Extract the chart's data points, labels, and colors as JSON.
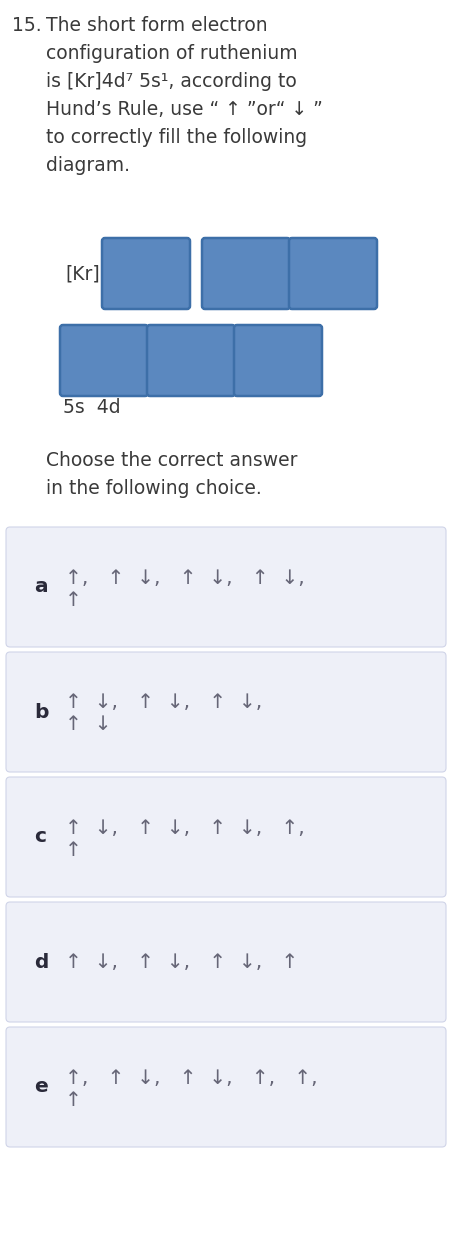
{
  "text_color": "#3a3a3a",
  "box_color": "#5b88bf",
  "box_border_color": "#3d6fa8",
  "choice_bg_color": "#eef0f8",
  "choice_border_color": "#d0d4e8",
  "bg_color": "#ffffff",
  "fig_width": 4.56,
  "fig_height": 12.51,
  "question_lines": [
    "The short form electron",
    "configuration of ruthenium",
    "is [Kr]4d⁷ 5s¹, according to",
    "Hund’s Rule, use “ ↑ ”or“ ↓ ”",
    "to correctly fill the following",
    "diagram."
  ],
  "choices": [
    {
      "label": "a",
      "top": "↑,   ↑  ↓,   ↑  ↓,   ↑  ↓,",
      "bot": "↑"
    },
    {
      "label": "b",
      "top": "↑  ↓,   ↑  ↓,   ↑  ↓,",
      "bot": "↑  ↓"
    },
    {
      "label": "c",
      "top": "↑  ↓,   ↑  ↓,   ↑  ↓,   ↑,",
      "bot": "↑"
    },
    {
      "label": "d",
      "top": "↑  ↓,   ↑  ↓,   ↑  ↓,   ↑",
      "bot": ""
    },
    {
      "label": "e",
      "top": "↑,   ↑  ↓,   ↑  ↓,   ↑,   ↑,",
      "bot": "↑"
    }
  ]
}
